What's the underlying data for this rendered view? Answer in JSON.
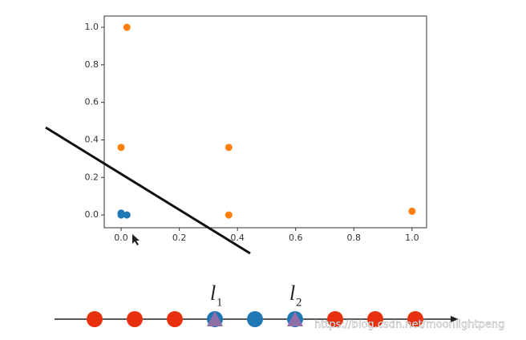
{
  "chart_data": {
    "type": "scatter",
    "xlim": [
      -0.058,
      1.05
    ],
    "ylim": [
      -0.068,
      1.06
    ],
    "xticks": [
      {
        "value": 0,
        "label": "0.0"
      },
      {
        "value": 0.2,
        "label": "0.2"
      },
      {
        "value": 0.4,
        "label": "0.4"
      },
      {
        "value": 0.6,
        "label": "0.6"
      },
      {
        "value": 0.8,
        "label": "0.8"
      },
      {
        "value": 1,
        "label": "1.0"
      }
    ],
    "yticks": [
      {
        "value": 0,
        "label": "0.0"
      },
      {
        "value": 0.2,
        "label": "0.2"
      },
      {
        "value": 0.4,
        "label": "0.4"
      },
      {
        "value": 0.6,
        "label": "0.6"
      },
      {
        "value": 0.8,
        "label": "0.8"
      },
      {
        "value": 1,
        "label": "1.0"
      }
    ],
    "series": [
      {
        "color": "#ff7f0e",
        "x": [
          0.02,
          0.0,
          0.37,
          0.37,
          1.0
        ],
        "y": [
          1.0,
          0.36,
          0.36,
          0.0,
          0.02
        ]
      },
      {
        "color": "#1f77b4",
        "x": [
          0.0,
          0.0,
          0.02
        ],
        "y": [
          0.01,
          0.0,
          0.0
        ]
      }
    ]
  },
  "diagram": {
    "labels": [
      {
        "text": "l",
        "sub": "1"
      },
      {
        "text": "l",
        "sub": "2"
      }
    ]
  },
  "watermark": "https://blog.csdn.net/moonlightpeng"
}
